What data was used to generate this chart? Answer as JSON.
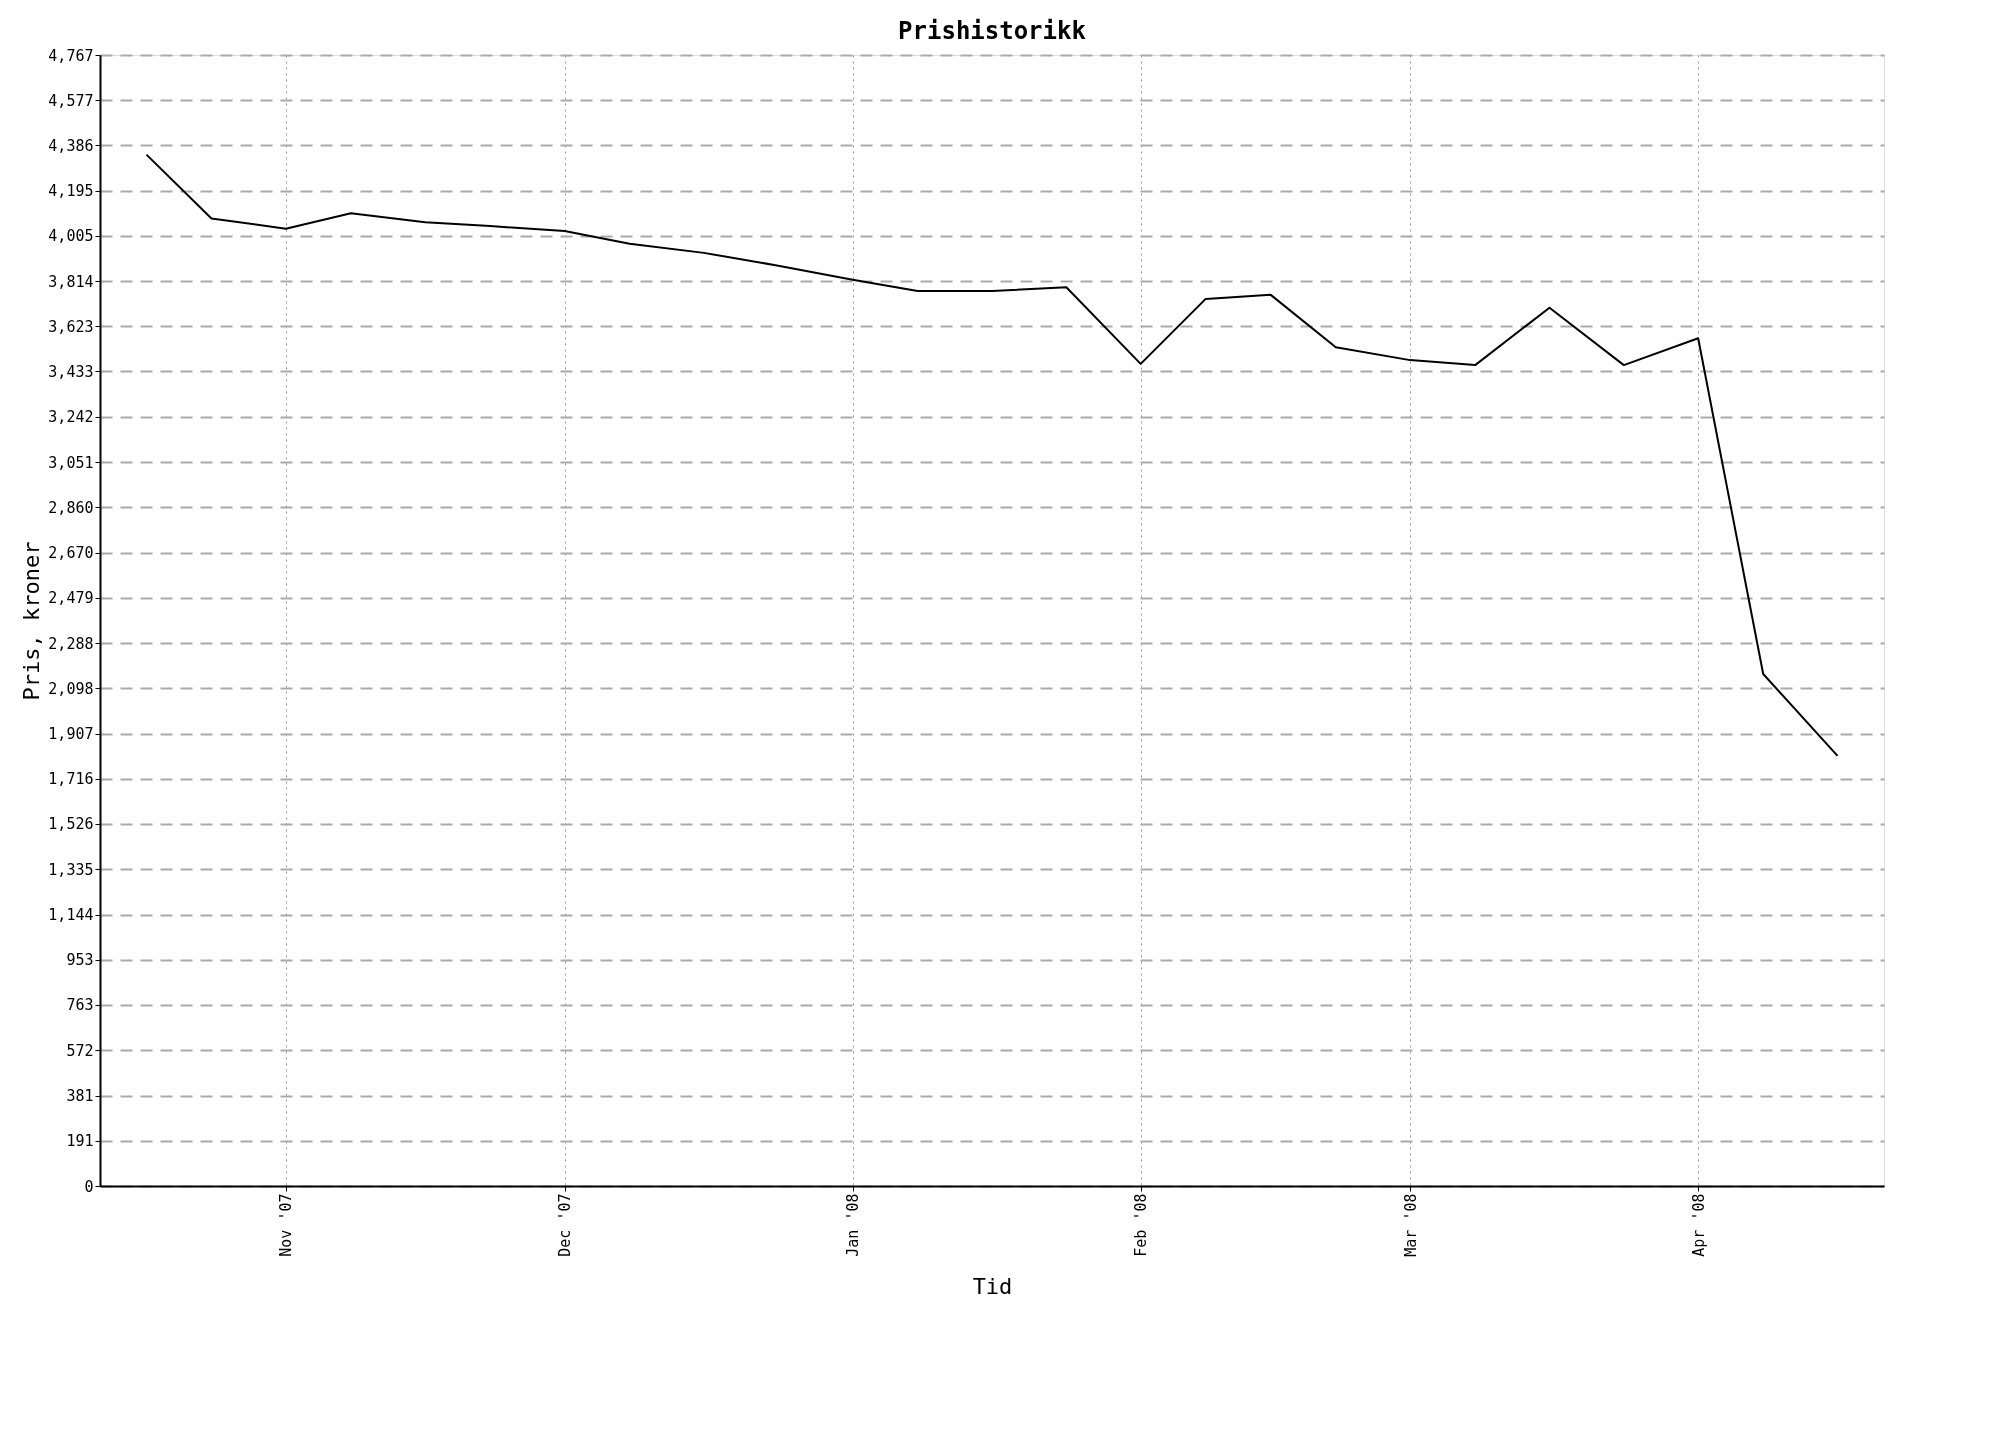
{
  "chart_data": {
    "type": "line",
    "title": "Prishistorikk",
    "xlabel": "Tid",
    "ylabel": "Pris, kroner",
    "x": [
      "2007-10-17",
      "2007-10-24",
      "2007-11-01",
      "2007-11-08",
      "2007-11-16",
      "2007-11-23",
      "2007-12-01",
      "2007-12-08",
      "2007-12-16",
      "2007-12-24",
      "2008-01-01",
      "2008-01-08",
      "2008-01-16",
      "2008-01-24",
      "2008-02-01",
      "2008-02-08",
      "2008-02-15",
      "2008-02-22",
      "2008-03-01",
      "2008-03-08",
      "2008-03-16",
      "2008-03-24",
      "2008-04-01",
      "2008-04-08",
      "2008-04-16"
    ],
    "series": [
      {
        "color": "#000000",
        "values": [
          4347,
          4078,
          4035,
          4100,
          4062,
          4046,
          4025,
          3971,
          3933,
          3879,
          3820,
          3772,
          3772,
          3788,
          3465,
          3739,
          3756,
          3535,
          3481,
          3460,
          3702,
          3460,
          3573,
          2158,
          1813
        ]
      }
    ],
    "xlim": [
      "2007-10-12",
      "2008-04-21"
    ],
    "xticks": [
      {
        "value": "2007-11-01",
        "label": "Nov '07"
      },
      {
        "value": "2007-12-01",
        "label": "Dec '07"
      },
      {
        "value": "2008-01-01",
        "label": "Jan '08"
      },
      {
        "value": "2008-02-01",
        "label": "Feb '08"
      },
      {
        "value": "2008-03-01",
        "label": "Mar '08"
      },
      {
        "value": "2008-04-01",
        "label": "Apr '08"
      }
    ],
    "ylim": [
      0,
      4767
    ],
    "yticks": [
      0,
      191,
      381,
      572,
      763,
      953,
      {
        "value": 1144,
        "label": "1,144"
      },
      {
        "value": 1335,
        "label": "1,335"
      },
      {
        "value": 1526,
        "label": "1,526"
      },
      {
        "value": 1716,
        "label": "1,716"
      },
      {
        "value": 1907,
        "label": "1,907"
      },
      {
        "value": 2098,
        "label": "2,098"
      },
      {
        "value": 2288,
        "label": "2,288"
      },
      {
        "value": 2479,
        "label": "2,479"
      },
      {
        "value": 2670,
        "label": "2,670"
      },
      {
        "value": 2860,
        "label": "2,860"
      },
      {
        "value": 3051,
        "label": "3,051"
      },
      {
        "value": 3242,
        "label": "3,242"
      },
      {
        "value": 3433,
        "label": "3,433"
      },
      {
        "value": 3623,
        "label": "3,623"
      },
      {
        "value": 3814,
        "label": "3,814"
      },
      {
        "value": 4005,
        "label": "4,005"
      },
      {
        "value": 4195,
        "label": "4,195"
      },
      {
        "value": 4386,
        "label": "4,386"
      },
      {
        "value": 4577,
        "label": "4,577"
      },
      {
        "value": 4767,
        "label": "4,767"
      }
    ],
    "grid": true,
    "legend": false,
    "marker": "none",
    "line_style": "solid"
  }
}
